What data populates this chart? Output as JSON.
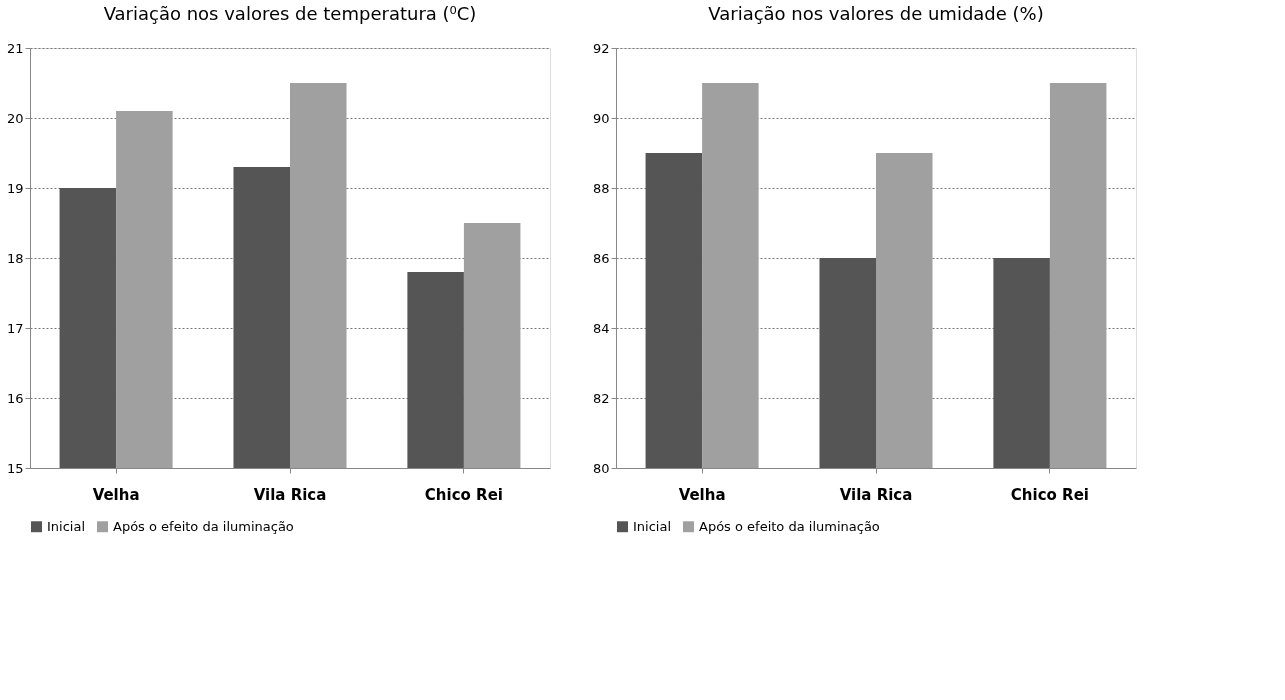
{
  "chart_data": [
    {
      "type": "bar",
      "title": "Variação nos valores de temperatura (⁰C)",
      "categories": [
        "Velha",
        "Vila Rica",
        "Chico Rei"
      ],
      "series": [
        {
          "name": "Inicial",
          "color": "#555555",
          "values": [
            19.0,
            19.3,
            17.8
          ]
        },
        {
          "name": "Após o efeito da iluminação",
          "color": "#a0a0a0",
          "values": [
            20.1,
            20.5,
            18.5
          ]
        }
      ],
      "ylim": [
        15,
        21
      ],
      "yticks": [
        15,
        16,
        17,
        18,
        19,
        20,
        21
      ],
      "grid": "y",
      "legend": "bottom"
    },
    {
      "type": "bar",
      "title": "Variação nos valores de  umidade (%)",
      "categories": [
        "Velha",
        "Vila Rica",
        "Chico Rei"
      ],
      "series": [
        {
          "name": "Inicial",
          "color": "#555555",
          "values": [
            89,
            86,
            86
          ]
        },
        {
          "name": "Após o efeito da iluminação",
          "color": "#a0a0a0",
          "values": [
            91,
            89,
            91
          ]
        }
      ],
      "ylim": [
        80,
        92
      ],
      "yticks": [
        80,
        82,
        84,
        86,
        88,
        90,
        92
      ],
      "grid": "y",
      "legend": "bottom"
    }
  ]
}
